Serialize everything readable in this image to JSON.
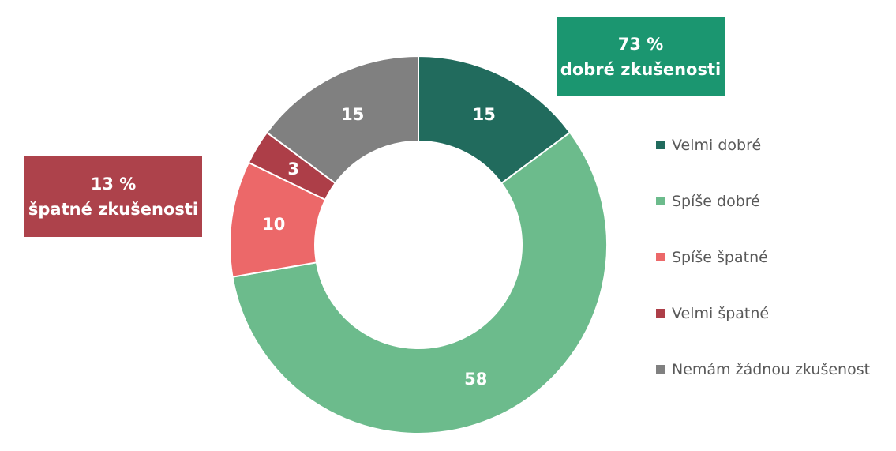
{
  "chart_data": {
    "type": "pie",
    "variant": "donut",
    "categories": [
      "Velmi dobré",
      "Spíše dobré",
      "Spíše špatné",
      "Velmi špatné",
      "Nemám žádnou zkušenost"
    ],
    "values": [
      15,
      58,
      10,
      3,
      15
    ],
    "colors": [
      "#216b5d",
      "#6cbb8c",
      "#ec6869",
      "#ad3e48",
      "#808080"
    ],
    "data_labels": [
      "15",
      "58",
      "10",
      "3",
      "15"
    ],
    "legend_placement": "right",
    "start_angle_deg": 0,
    "direction": "clockwise"
  },
  "callouts": {
    "good": {
      "line1": "73 %",
      "line2": "dobré zkušenosti",
      "color": "#1b9670"
    },
    "bad": {
      "line1": "13 %",
      "line2": "špatné zkušenosti",
      "color": "#ad424b"
    }
  }
}
